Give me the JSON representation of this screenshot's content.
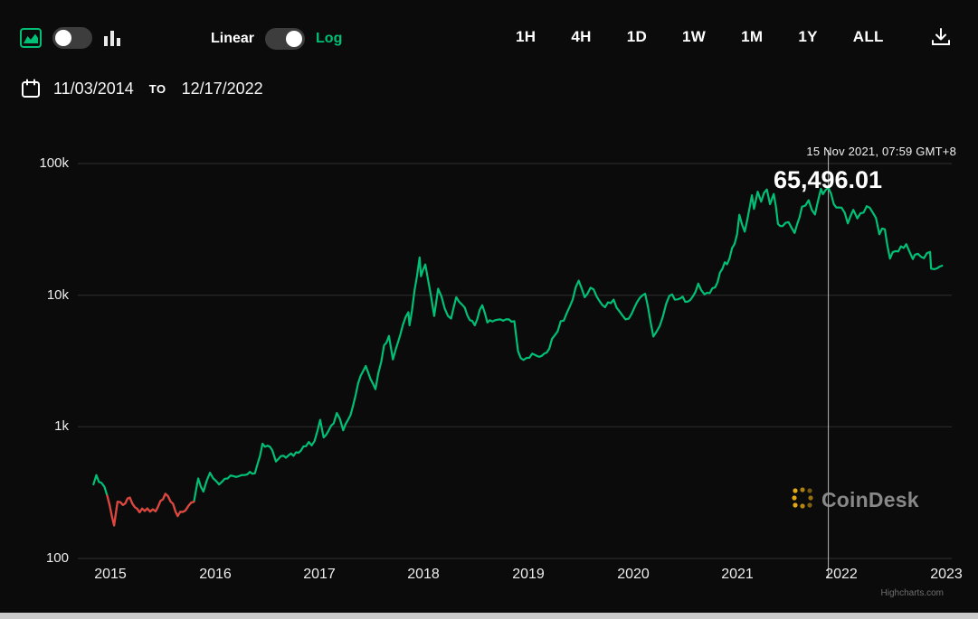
{
  "toolbar": {
    "chart_type": {
      "selected": "line"
    },
    "scale_toggle": {
      "linear_label": "Linear",
      "log_label": "Log",
      "selected": "log"
    },
    "ranges": [
      "1H",
      "4H",
      "1D",
      "1W",
      "1M",
      "1Y",
      "ALL"
    ]
  },
  "date_range": {
    "start": "11/03/2014",
    "separator": "TO",
    "end": "12/17/2022"
  },
  "tooltip": {
    "datetime": "15 Nov 2021, 07:59 GMT+8",
    "value": "65,496.01"
  },
  "branding": {
    "logo_text": "CoinDesk",
    "credit": "Highcharts.com"
  },
  "colors": {
    "accent_green": "#00c076",
    "loss_red": "#e8413d",
    "background": "#0b0b0b",
    "grid": "#303030",
    "crosshair": "#c8c8c8",
    "logo_yellow": "#f9b916"
  },
  "chart_data": {
    "type": "line",
    "x_axis": {
      "type": "datetime",
      "ticks": [
        "2015",
        "2016",
        "2017",
        "2018",
        "2019",
        "2020",
        "2021",
        "2022",
        "2023"
      ],
      "range": [
        "2014-11-03",
        "2022-12-17"
      ]
    },
    "y_axis": {
      "scale": "log",
      "ticks": [
        "100k",
        "10k",
        "1k",
        "100"
      ],
      "range": [
        100,
        100000
      ]
    },
    "crosshair": {
      "date": "2021-11-15",
      "value": 65496.01
    },
    "red_segment": [
      "2014-12-21",
      "2015-10-20"
    ],
    "series": [
      {
        "points": [
          [
            "2014-11-03",
            365
          ],
          [
            "2014-11-13",
            430
          ],
          [
            "2014-12-01",
            375
          ],
          [
            "2014-12-21",
            300
          ],
          [
            "2015-01-14",
            178
          ],
          [
            "2015-01-26",
            270
          ],
          [
            "2015-02-14",
            255
          ],
          [
            "2015-03-10",
            290
          ],
          [
            "2015-04-13",
            224
          ],
          [
            "2015-05-10",
            240
          ],
          [
            "2015-06-08",
            228
          ],
          [
            "2015-07-12",
            310
          ],
          [
            "2015-08-08",
            260
          ],
          [
            "2015-08-24",
            210
          ],
          [
            "2015-09-20",
            231
          ],
          [
            "2015-10-20",
            270
          ],
          [
            "2015-11-04",
            405
          ],
          [
            "2015-11-22",
            322
          ],
          [
            "2015-12-15",
            448
          ],
          [
            "2016-01-16",
            365
          ],
          [
            "2016-02-15",
            405
          ],
          [
            "2016-03-15",
            416
          ],
          [
            "2016-04-15",
            430
          ],
          [
            "2016-05-20",
            443
          ],
          [
            "2016-06-16",
            745
          ],
          [
            "2016-07-20",
            665
          ],
          [
            "2016-08-02",
            545
          ],
          [
            "2016-09-15",
            607
          ],
          [
            "2016-10-20",
            635
          ],
          [
            "2016-11-15",
            712
          ],
          [
            "2016-12-15",
            778
          ],
          [
            "2017-01-04",
            1130
          ],
          [
            "2017-01-16",
            830
          ],
          [
            "2017-02-20",
            1060
          ],
          [
            "2017-03-03",
            1275
          ],
          [
            "2017-03-25",
            940
          ],
          [
            "2017-04-20",
            1230
          ],
          [
            "2017-05-25",
            2440
          ],
          [
            "2017-06-12",
            2900
          ],
          [
            "2017-07-16",
            1930
          ],
          [
            "2017-08-15",
            4160
          ],
          [
            "2017-09-01",
            4900
          ],
          [
            "2017-09-15",
            3250
          ],
          [
            "2017-10-20",
            5980
          ],
          [
            "2017-11-08",
            7420
          ],
          [
            "2017-11-12",
            5900
          ],
          [
            "2017-12-17",
            19350
          ],
          [
            "2017-12-22",
            13900
          ],
          [
            "2018-01-06",
            17100
          ],
          [
            "2018-02-06",
            6950
          ],
          [
            "2018-02-20",
            11200
          ],
          [
            "2018-03-15",
            7900
          ],
          [
            "2018-04-06",
            6650
          ],
          [
            "2018-04-24",
            9650
          ],
          [
            "2018-05-15",
            8450
          ],
          [
            "2018-06-28",
            5900
          ],
          [
            "2018-07-24",
            8380
          ],
          [
            "2018-08-11",
            6200
          ],
          [
            "2018-09-15",
            6510
          ],
          [
            "2018-10-15",
            6550
          ],
          [
            "2018-11-13",
            6350
          ],
          [
            "2018-11-26",
            3750
          ],
          [
            "2018-12-15",
            3220
          ],
          [
            "2019-01-15",
            3600
          ],
          [
            "2019-02-08",
            3400
          ],
          [
            "2019-03-15",
            3920
          ],
          [
            "2019-04-03",
            4950
          ],
          [
            "2019-05-15",
            7300
          ],
          [
            "2019-06-26",
            12900
          ],
          [
            "2019-07-17",
            9650
          ],
          [
            "2019-08-06",
            11400
          ],
          [
            "2019-08-28",
            9750
          ],
          [
            "2019-09-26",
            8100
          ],
          [
            "2019-10-26",
            9250
          ],
          [
            "2019-11-25",
            7050
          ],
          [
            "2019-12-18",
            6650
          ],
          [
            "2020-01-15",
            8800
          ],
          [
            "2020-02-13",
            10250
          ],
          [
            "2020-03-13",
            4850
          ],
          [
            "2020-04-15",
            6850
          ],
          [
            "2020-05-08",
            9900
          ],
          [
            "2020-06-15",
            9450
          ],
          [
            "2020-07-20",
            9180
          ],
          [
            "2020-08-17",
            12250
          ],
          [
            "2020-09-08",
            10150
          ],
          [
            "2020-10-15",
            11450
          ],
          [
            "2020-11-18",
            17800
          ],
          [
            "2020-11-26",
            17150
          ],
          [
            "2020-12-31",
            29000
          ],
          [
            "2021-01-08",
            40800
          ],
          [
            "2021-01-27",
            30400
          ],
          [
            "2021-02-21",
            57400
          ],
          [
            "2021-02-28",
            45200
          ],
          [
            "2021-03-13",
            61200
          ],
          [
            "2021-03-25",
            51300
          ],
          [
            "2021-04-14",
            63500
          ],
          [
            "2021-04-25",
            49100
          ],
          [
            "2021-05-08",
            58800
          ],
          [
            "2021-05-23",
            34800
          ],
          [
            "2021-06-08",
            33500
          ],
          [
            "2021-06-29",
            35900
          ],
          [
            "2021-07-20",
            29700
          ],
          [
            "2021-08-15",
            47000
          ],
          [
            "2021-09-07",
            52600
          ],
          [
            "2021-09-29",
            41000
          ],
          [
            "2021-10-20",
            64300
          ],
          [
            "2021-10-27",
            58500
          ],
          [
            "2021-11-15",
            65496.01
          ],
          [
            "2021-12-04",
            49200
          ],
          [
            "2021-12-31",
            46200
          ],
          [
            "2022-01-22",
            35100
          ],
          [
            "2022-02-10",
            44500
          ],
          [
            "2022-02-24",
            38300
          ],
          [
            "2022-03-29",
            47400
          ],
          [
            "2022-04-30",
            38600
          ],
          [
            "2022-05-12",
            29000
          ],
          [
            "2022-05-31",
            31700
          ],
          [
            "2022-06-18",
            18950
          ],
          [
            "2022-07-08",
            21600
          ],
          [
            "2022-08-14",
            24400
          ],
          [
            "2022-09-06",
            18800
          ],
          [
            "2022-09-13",
            20300
          ],
          [
            "2022-10-15",
            19100
          ],
          [
            "2022-11-05",
            21300
          ],
          [
            "2022-11-09",
            15900
          ],
          [
            "2022-11-21",
            15760
          ],
          [
            "2022-12-17",
            16750
          ]
        ]
      }
    ]
  }
}
